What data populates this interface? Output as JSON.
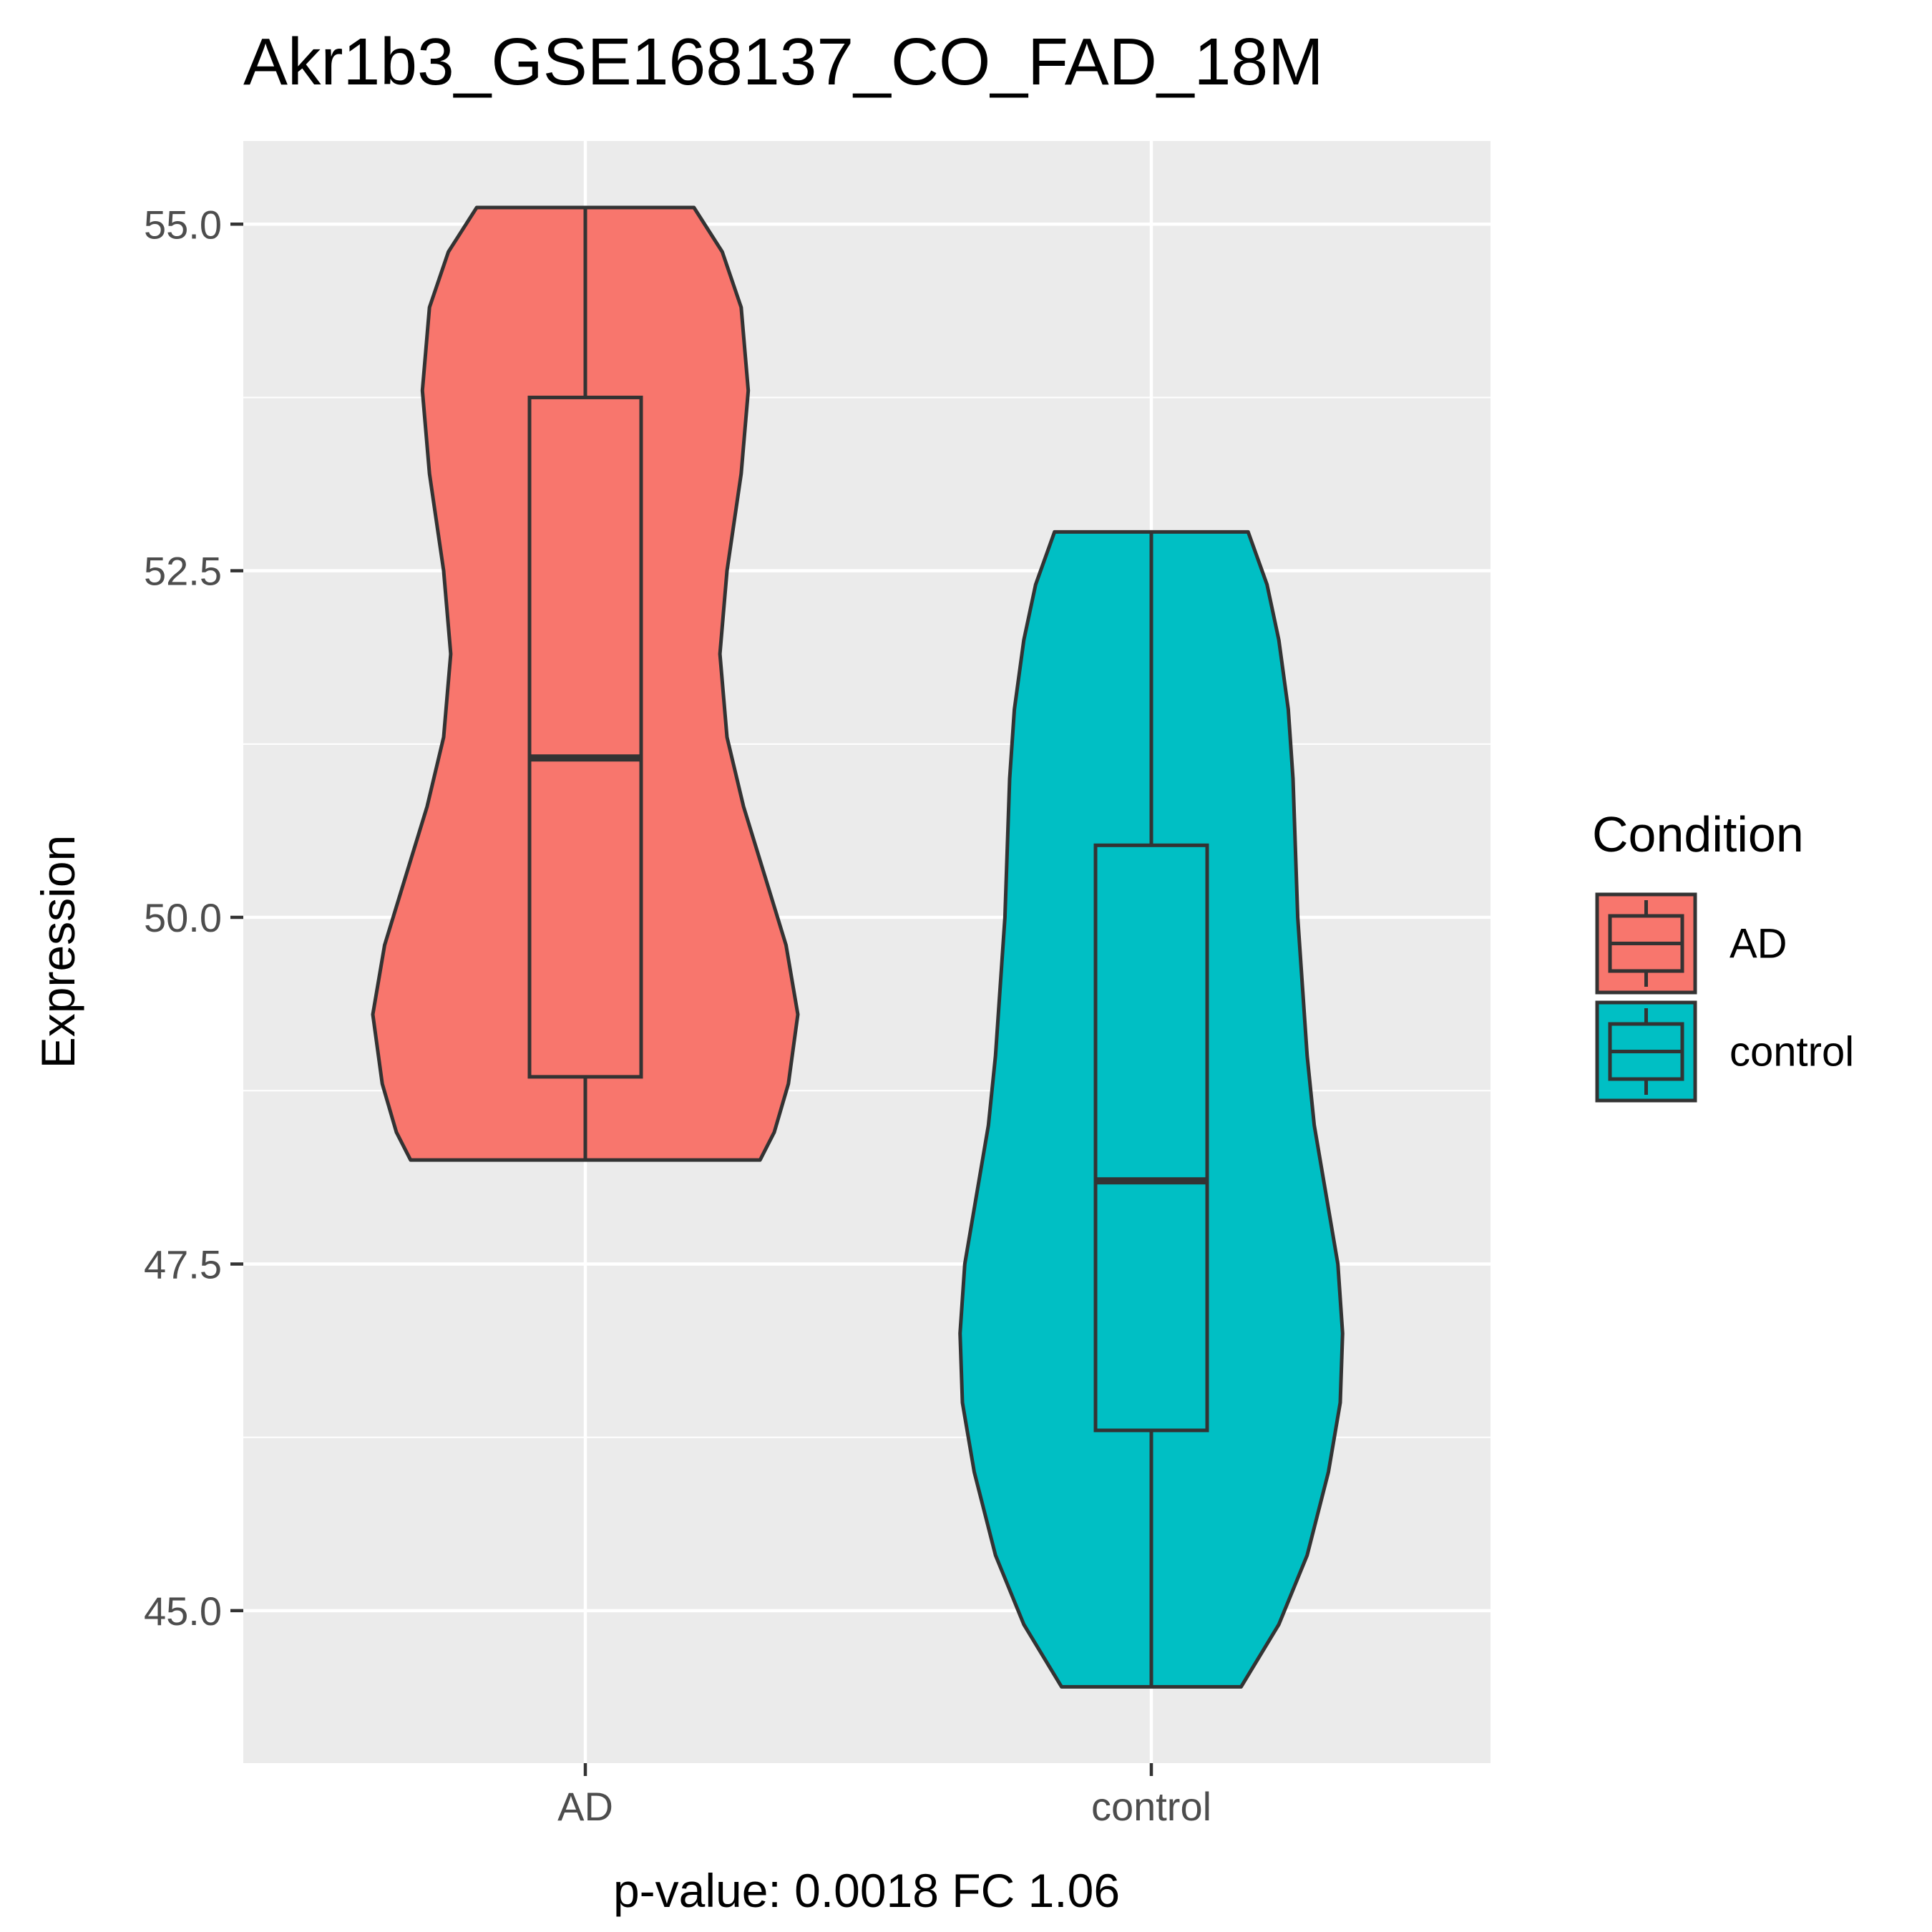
{
  "chart_data": {
    "type": "violin",
    "title": "Akr1b3_GSE168137_CO_FAD_18M",
    "xlabel": "p-value: 0.0018 FC 1.06",
    "ylabel": "Expression",
    "ylim": [
      43.9,
      55.6
    ],
    "y_ticks": [
      45.0,
      47.5,
      50.0,
      52.5,
      55.0
    ],
    "y_tick_labels": [
      "45.0",
      "47.5",
      "50.0",
      "52.5",
      "55.0"
    ],
    "categories": [
      "AD",
      "control"
    ],
    "grid": true,
    "legend": {
      "title": "Condition",
      "position": "right",
      "entries": [
        "AD",
        "control"
      ]
    },
    "series": [
      {
        "name": "AD",
        "color": "#F8766D",
        "min": 48.25,
        "q1": 48.85,
        "median": 51.15,
        "q3": 53.75,
        "max": 55.12,
        "density_profile": [
          [
            48.25,
            0.74
          ],
          [
            48.45,
            0.8
          ],
          [
            48.8,
            0.86
          ],
          [
            49.3,
            0.9
          ],
          [
            49.8,
            0.85
          ],
          [
            50.3,
            0.76
          ],
          [
            50.8,
            0.67
          ],
          [
            51.3,
            0.6
          ],
          [
            51.9,
            0.57
          ],
          [
            52.5,
            0.6
          ],
          [
            53.2,
            0.66
          ],
          [
            53.8,
            0.69
          ],
          [
            54.4,
            0.66
          ],
          [
            54.8,
            0.58
          ],
          [
            55.12,
            0.46
          ]
        ]
      },
      {
        "name": "control",
        "color": "#00BFC4",
        "min": 44.45,
        "q1": 46.3,
        "median": 48.1,
        "q3": 50.52,
        "max": 52.78,
        "density_profile": [
          [
            44.45,
            0.38
          ],
          [
            44.9,
            0.54
          ],
          [
            45.4,
            0.66
          ],
          [
            46.0,
            0.75
          ],
          [
            46.5,
            0.8
          ],
          [
            47.0,
            0.81
          ],
          [
            47.5,
            0.79
          ],
          [
            48.0,
            0.74
          ],
          [
            48.5,
            0.69
          ],
          [
            49.0,
            0.66
          ],
          [
            49.5,
            0.64
          ],
          [
            50.0,
            0.62
          ],
          [
            50.5,
            0.61
          ],
          [
            51.0,
            0.6
          ],
          [
            51.5,
            0.58
          ],
          [
            52.0,
            0.54
          ],
          [
            52.4,
            0.49
          ],
          [
            52.78,
            0.41
          ]
        ]
      }
    ]
  }
}
